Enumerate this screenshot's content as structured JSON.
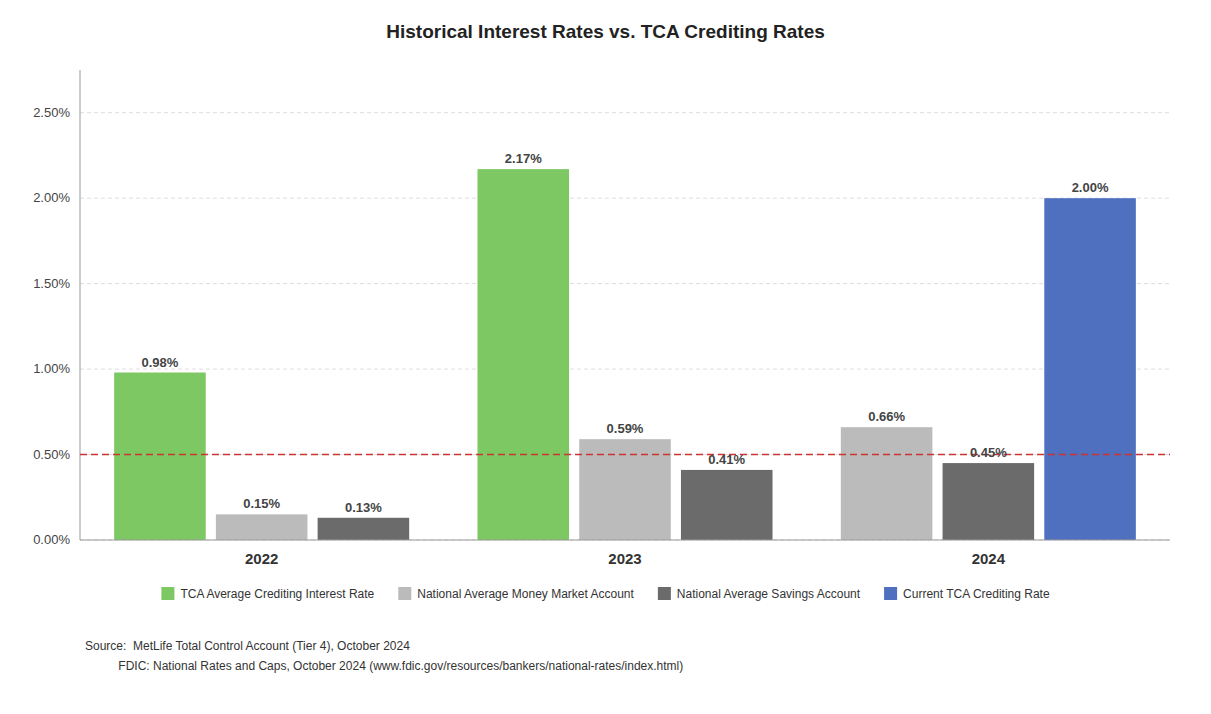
{
  "chart_data": {
    "type": "bar",
    "title": "Historical Interest Rates vs. TCA Crediting Rates",
    "categories": [
      "2022",
      "2023",
      "2024"
    ],
    "series": [
      {
        "name": "TCA Average Crediting Interest Rate",
        "color": "#7DC862",
        "values": [
          0.98,
          2.17,
          null
        ],
        "value_labels": [
          "0.98%",
          "2.17%",
          null
        ]
      },
      {
        "name": "National Average Money Market Account",
        "color": "#BBBBBB",
        "values": [
          0.15,
          0.59,
          0.66
        ],
        "value_labels": [
          "0.15%",
          "0.59%",
          "0.66%"
        ]
      },
      {
        "name": "National Average Savings Account",
        "color": "#6B6B6B",
        "values": [
          0.13,
          0.41,
          0.45
        ],
        "value_labels": [
          "0.13%",
          "0.41%",
          "0.45%"
        ]
      },
      {
        "name": "Current TCA Crediting Rate",
        "color": "#4F6FBF",
        "values": [
          null,
          null,
          2.0
        ],
        "value_labels": [
          null,
          null,
          "2.00%"
        ]
      }
    ],
    "reference_line": {
      "value": 0.5,
      "color": "#CC3333"
    },
    "ylim": [
      0,
      2.75
    ],
    "yticks": [
      {
        "value": 0,
        "label": "0.00%"
      },
      {
        "value": 0.5,
        "label": "0.50%"
      },
      {
        "value": 1.0,
        "label": "1.00%"
      },
      {
        "value": 1.5,
        "label": "1.50%"
      },
      {
        "value": 2.0,
        "label": "2.00%"
      },
      {
        "value": 2.5,
        "label": "2.50%"
      }
    ],
    "grid": true,
    "legend": "bottom",
    "data_labels": true,
    "source": [
      "Source:  MetLife Total Control Account (Tier 4), October 2024",
      "          FDIC: National Rates and Caps, October 2024 (www.fdic.gov/resources/bankers/national-rates/index.html)"
    ]
  }
}
